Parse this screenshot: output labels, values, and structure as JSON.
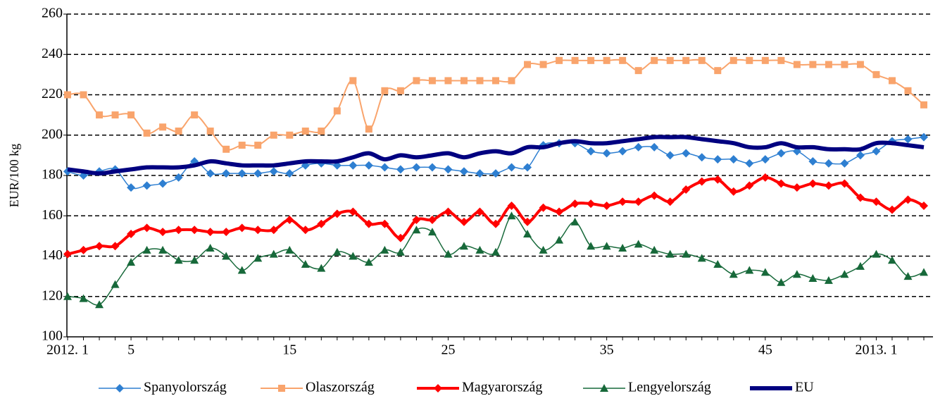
{
  "chart_data": {
    "type": "line",
    "y_label": "EUR/100 kg",
    "categories": [
      "2012. 1",
      null,
      null,
      null,
      "5",
      null,
      null,
      null,
      null,
      null,
      null,
      null,
      null,
      null,
      "15",
      null,
      null,
      null,
      null,
      null,
      null,
      null,
      null,
      null,
      "25",
      null,
      null,
      null,
      null,
      null,
      null,
      null,
      null,
      null,
      "35",
      null,
      null,
      null,
      null,
      null,
      null,
      null,
      null,
      null,
      "45",
      null,
      null,
      null,
      null,
      null,
      null,
      "2013. 1",
      null,
      null,
      null
    ],
    "ylim": [
      100,
      260
    ],
    "yticks": [
      100,
      120,
      140,
      160,
      180,
      200,
      220,
      240,
      260
    ],
    "grid": true,
    "legend": "bottom",
    "series": [
      {
        "name": "Spanyolország",
        "color": "#2e7fd1",
        "marker": "diamond",
        "width": 1.5,
        "values": [
          182,
          180,
          182,
          183,
          174,
          175,
          176,
          179,
          187,
          181,
          181,
          181,
          181,
          182,
          181,
          185,
          186,
          185,
          185,
          185,
          184,
          183,
          184,
          184,
          183,
          182,
          181,
          181,
          184,
          184,
          195,
          196,
          196,
          192,
          191,
          192,
          194,
          194,
          190,
          191,
          189,
          188,
          188,
          186,
          188,
          191,
          192,
          187,
          186,
          186,
          190,
          192,
          197,
          198,
          199
        ]
      },
      {
        "name": "Olaszország",
        "color": "#f9a46c",
        "marker": "square",
        "width": 2,
        "values": [
          220,
          220,
          210,
          210,
          210,
          201,
          204,
          202,
          210,
          202,
          193,
          195,
          195,
          200,
          200,
          202,
          202,
          212,
          227,
          203,
          222,
          222,
          227,
          227,
          227,
          227,
          227,
          227,
          227,
          235,
          235,
          237,
          237,
          237,
          237,
          237,
          232,
          237,
          237,
          237,
          237,
          232,
          237,
          237,
          237,
          237,
          235,
          235,
          235,
          235,
          235,
          230,
          227,
          222,
          215
        ]
      },
      {
        "name": "Magyarország",
        "color": "#ff0000",
        "marker": "diamond",
        "width": 4,
        "values": [
          141,
          143,
          145,
          145,
          151,
          154,
          152,
          153,
          153,
          152,
          152,
          154,
          153,
          153,
          158,
          153,
          156,
          161,
          162,
          156,
          156,
          149,
          158,
          158,
          162,
          157,
          162,
          156,
          165,
          157,
          164,
          162,
          166,
          166,
          165,
          167,
          167,
          170,
          167,
          173,
          177,
          178,
          172,
          175,
          179,
          176,
          174,
          176,
          175,
          176,
          169,
          167,
          163,
          168,
          165
        ]
      },
      {
        "name": "Lengyelország",
        "color": "#17693a",
        "marker": "triangle",
        "width": 1.5,
        "values": [
          120,
          119,
          116,
          126,
          137,
          143,
          143,
          138,
          138,
          144,
          140,
          133,
          139,
          141,
          143,
          136,
          134,
          142,
          140,
          137,
          143,
          142,
          153,
          152,
          141,
          145,
          143,
          142,
          160,
          151,
          143,
          148,
          157,
          145,
          145,
          144,
          146,
          143,
          141,
          141,
          139,
          136,
          131,
          133,
          132,
          127,
          131,
          129,
          128,
          131,
          135,
          141,
          138,
          130,
          132
        ]
      },
      {
        "name": "EU",
        "color": "#000080",
        "marker": "none",
        "width": 6,
        "values": [
          183,
          182,
          181,
          182,
          183,
          184,
          184,
          184,
          185,
          187,
          186,
          185,
          185,
          185,
          186,
          187,
          187,
          187,
          189,
          191,
          188,
          190,
          189,
          190,
          191,
          189,
          191,
          192,
          191,
          194,
          194,
          196,
          197,
          196,
          196,
          197,
          198,
          199,
          199,
          199,
          198,
          197,
          196,
          194,
          194,
          196,
          194,
          194,
          193,
          193,
          193,
          196,
          196,
          195,
          194
        ]
      }
    ]
  }
}
